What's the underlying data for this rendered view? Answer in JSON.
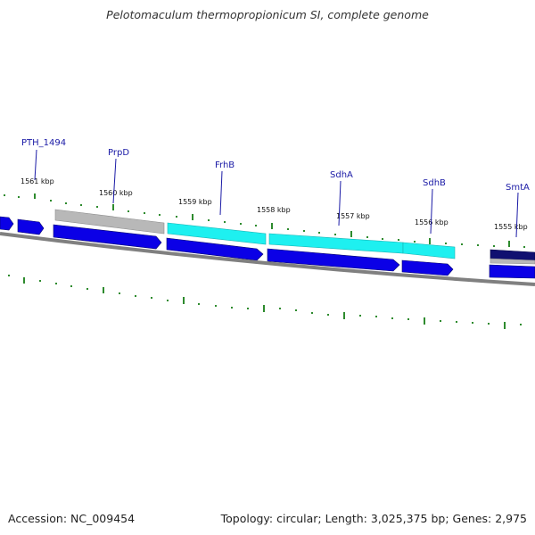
{
  "title": "Pelotomaculum thermopropionicum SI, complete genome",
  "footer": {
    "accession": "Accession: NC_009454",
    "summary": "Topology: circular; Length: 3,025,375 bp; Genes: 2,975"
  },
  "colors": {
    "cds": "#0b00e6",
    "highlight": "#1ef0f0",
    "gray": "#b8b8b8",
    "backbone": "#808080",
    "tick": "#2e8b2e",
    "label": "#1a1aa6"
  },
  "scale_labels": [
    "1561 kbp",
    "1560 kbp",
    "1559 kbp",
    "1558 kbp",
    "1557 kbp",
    "1556 kbp",
    "1555 kbp"
  ],
  "gene_labels": [
    "PTH_1494",
    "PrpD",
    "FrhB",
    "SdhA",
    "SdhB",
    "SmtA"
  ]
}
